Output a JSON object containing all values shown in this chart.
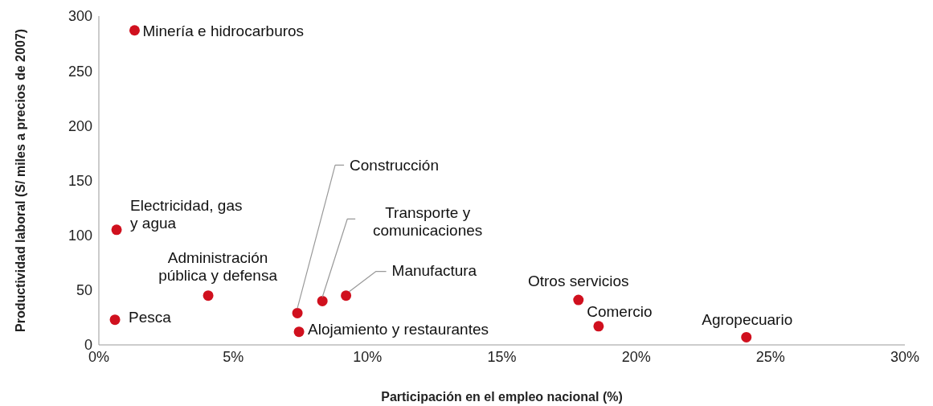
{
  "chart_data": {
    "type": "scatter",
    "xlabel": "Participación en el empleo nacional (%)",
    "ylabel": "Productividad laboral (S/ miles a precios de 2007)",
    "x": [
      1.33,
      0.66,
      0.6,
      4.07,
      7.39,
      7.45,
      8.32,
      9.2,
      17.85,
      18.6,
      24.1
    ],
    "series": [
      {
        "color": "#d0101e",
        "values": [
          287,
          105,
          23,
          45,
          29,
          12,
          40,
          45,
          41,
          17,
          7
        ]
      }
    ],
    "xlim": [
      0,
      30
    ],
    "xticks": [
      {
        "value": 0,
        "label": "0%"
      },
      {
        "value": 5,
        "label": "5%"
      },
      {
        "value": 10,
        "label": "10%"
      },
      {
        "value": 15,
        "label": "15%"
      },
      {
        "value": 20,
        "label": "20%"
      },
      {
        "value": 25,
        "label": "25%"
      },
      {
        "value": 30,
        "label": "30%"
      }
    ],
    "ylim": [
      0,
      300
    ],
    "yticks": [
      0,
      50,
      100,
      150,
      200,
      250,
      300
    ],
    "grid": false,
    "marker": "circle",
    "annotations": [
      {
        "text": "Minería e hidrocarburos",
        "x": 1.33,
        "y": 287
      },
      {
        "text": "Electricidad, gas\ny agua",
        "x": 0.66,
        "y": 105
      },
      {
        "text": "Pesca",
        "x": 0.6,
        "y": 23
      },
      {
        "text": "Administración\npública y defensa",
        "x": 4.07,
        "y": 45
      },
      {
        "text": "Construcción",
        "x": 7.39,
        "y": 29
      },
      {
        "text": "Alojamiento y restaurantes",
        "x": 7.45,
        "y": 12
      },
      {
        "text": "Transporte y\ncomunicaciones",
        "x": 8.32,
        "y": 40
      },
      {
        "text": "Manufactura",
        "x": 9.2,
        "y": 45
      },
      {
        "text": "Otros servicios",
        "x": 17.85,
        "y": 41
      },
      {
        "text": "Comercio",
        "x": 18.6,
        "y": 17
      },
      {
        "text": "Agropecuario",
        "x": 24.1,
        "y": 7
      }
    ]
  }
}
